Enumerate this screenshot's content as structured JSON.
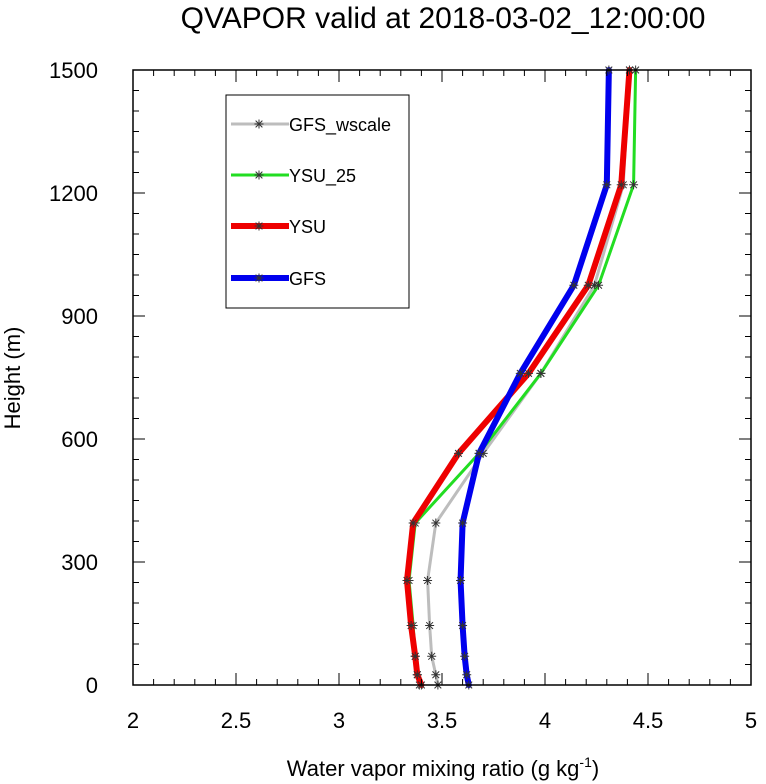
{
  "chart_data": {
    "type": "line",
    "title": "QVAPOR valid at 2018-03-02_12:00:00",
    "xlabel": "Water vapor mixing ratio (g kg",
    "xlabel_sup": "-1",
    "xlabel_close": ")",
    "ylabel": "Height (m)",
    "xlim": [
      2,
      5
    ],
    "ylim": [
      0,
      1500
    ],
    "xticks": [
      2,
      2.5,
      3,
      3.5,
      4,
      4.5,
      5
    ],
    "xtick_labels": [
      "2",
      "2.5",
      "3",
      "3.5",
      "4",
      "4.5",
      "5"
    ],
    "yticks": [
      0,
      300,
      600,
      900,
      1200,
      1500
    ],
    "ytick_labels": [
      "0",
      "300",
      "600",
      "900",
      "1200",
      "1500"
    ],
    "grid": false,
    "legend_position": "upper-left",
    "series": [
      {
        "name": "GFS_wscale",
        "color": "#bdbdbd",
        "width": 3,
        "x": [
          3.48,
          3.47,
          3.45,
          3.44,
          3.43,
          3.47,
          3.7,
          3.98,
          4.24,
          4.38,
          4.41
        ],
        "y": [
          0,
          25,
          70,
          145,
          255,
          395,
          565,
          760,
          975,
          1220,
          1500
        ]
      },
      {
        "name": "YSU_25",
        "color": "#22dd22",
        "width": 3,
        "x": [
          3.39,
          3.38,
          3.37,
          3.36,
          3.34,
          3.37,
          3.68,
          3.98,
          4.26,
          4.43,
          4.44
        ],
        "y": [
          0,
          25,
          70,
          145,
          255,
          395,
          565,
          760,
          975,
          1220,
          1500
        ]
      },
      {
        "name": "YSU",
        "color": "#ee0000",
        "width": 6,
        "x": [
          3.4,
          3.38,
          3.37,
          3.35,
          3.33,
          3.36,
          3.58,
          3.92,
          4.21,
          4.37,
          4.41
        ],
        "y": [
          0,
          25,
          70,
          145,
          255,
          395,
          565,
          760,
          975,
          1220,
          1500
        ]
      },
      {
        "name": "GFS",
        "color": "#0000ee",
        "width": 6,
        "x": [
          3.63,
          3.62,
          3.61,
          3.6,
          3.59,
          3.6,
          3.68,
          3.88,
          4.14,
          4.3,
          4.31
        ],
        "y": [
          0,
          25,
          70,
          145,
          255,
          395,
          565,
          760,
          975,
          1220,
          1500
        ]
      }
    ]
  }
}
